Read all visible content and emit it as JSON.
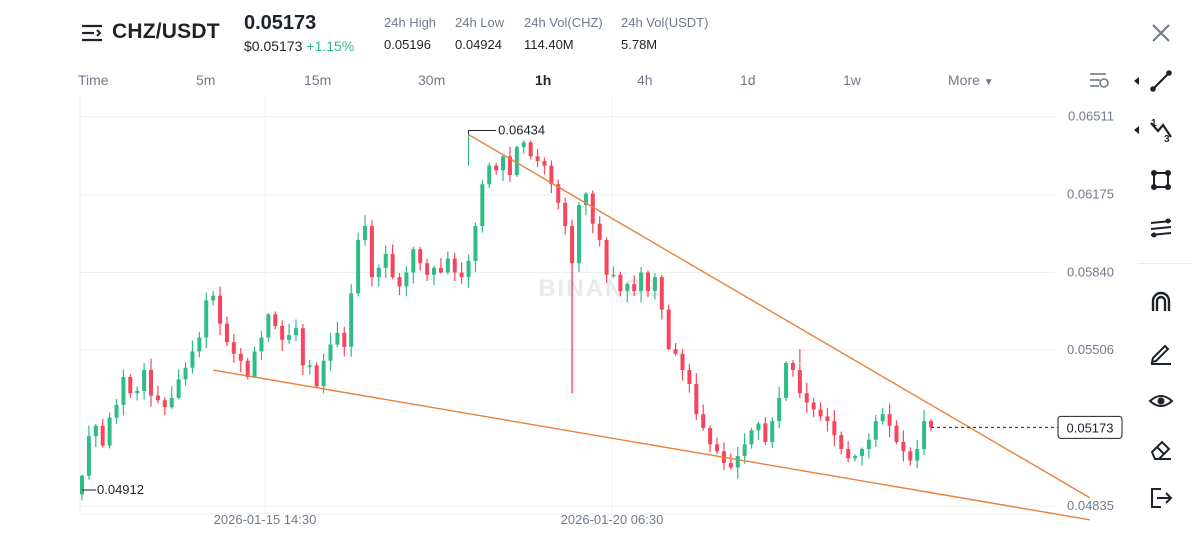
{
  "header": {
    "pair": "CHZ/USDT",
    "last_price": "0.05173",
    "usd_price": "$0.05173",
    "change": "+1.15%",
    "stats": [
      {
        "label": "24h High",
        "value": "0.05196"
      },
      {
        "label": "24h Low",
        "value": "0.04924"
      },
      {
        "label": "24h Vol(CHZ)",
        "value": "114.40M"
      },
      {
        "label": "24h Vol(USDT)",
        "value": "5.78M"
      }
    ]
  },
  "tabs": {
    "time": "Time",
    "intervals": [
      "5m",
      "15m",
      "30m",
      "1h",
      "4h",
      "1d",
      "1w"
    ],
    "active": "1h",
    "more": "More"
  },
  "chart_data": {
    "type": "candlestick",
    "watermark": "BINANCE",
    "y_axis_labels": [
      "0.06511",
      "0.06175",
      "0.05840",
      "0.05506",
      "0.04835"
    ],
    "ylim": [
      0.048,
      0.066
    ],
    "x_axis_labels": [
      "2026-01-15 14:30",
      "2026-01-20 06:30"
    ],
    "high_label": "0.06434",
    "low_label": "0.04912",
    "current_price": "0.05173",
    "colors": {
      "up": "#2ebd85",
      "down": "#f6465d",
      "trendline": "#e8813a",
      "grid": "#eef0f2",
      "text": "#707a8a"
    },
    "closes": [
      0.04965,
      0.05135,
      0.0518,
      0.05095,
      0.05215,
      0.0527,
      0.0539,
      0.0532,
      0.0533,
      0.0542,
      0.0531,
      0.0529,
      0.0526,
      0.053,
      0.0538,
      0.0543,
      0.055,
      0.0556,
      0.0572,
      0.0574,
      0.0562,
      0.0554,
      0.0549,
      0.0546,
      0.0539,
      0.055,
      0.0556,
      0.0566,
      0.0561,
      0.0555,
      0.0557,
      0.056,
      0.0544,
      0.0544,
      0.0535,
      0.0546,
      0.0553,
      0.0558,
      0.0552,
      0.0575,
      0.0598,
      0.0604,
      0.0582,
      0.0586,
      0.0592,
      0.0582,
      0.0578,
      0.0584,
      0.0594,
      0.0588,
      0.0583,
      0.0586,
      0.0584,
      0.059,
      0.0584,
      0.0582,
      0.0589,
      0.0604,
      0.0622,
      0.063,
      0.0628,
      0.0634,
      0.0626,
      0.0638,
      0.064,
      0.0634,
      0.0632,
      0.063,
      0.0622,
      0.0614,
      0.0604,
      0.0588,
      0.0613,
      0.0618,
      0.0605,
      0.0598,
      0.0583,
      0.0583,
      0.0576,
      0.0579,
      0.0576,
      0.0584,
      0.0576,
      0.0582,
      0.0568,
      0.0551,
      0.0549,
      0.0542,
      0.0536,
      0.0523,
      0.0517,
      0.051,
      0.0507,
      0.0502,
      0.05,
      0.0505,
      0.051,
      0.0516,
      0.0519,
      0.0511,
      0.052,
      0.053,
      0.0545,
      0.0542,
      0.0532,
      0.0528,
      0.0525,
      0.0522,
      0.052,
      0.0514,
      0.0508,
      0.0504,
      0.0505,
      0.0508,
      0.0512,
      0.052,
      0.0523,
      0.0518,
      0.0511,
      0.0507,
      0.0503,
      0.0508,
      0.052,
      0.05173
    ],
    "trendlines": [
      {
        "from": {
          "i": 56,
          "p": 0.06434
        },
        "to": {
          "i": 146,
          "p": 0.0487
        }
      },
      {
        "from": {
          "i": 19,
          "p": 0.0542
        },
        "to": {
          "i": 146,
          "p": 0.04775
        }
      }
    ]
  },
  "toolbar": {
    "tools": [
      "line-tool-icon",
      "fib-tool-icon",
      "shape-tool-icon",
      "parallel-channel-icon",
      "magnet-icon",
      "pencil-icon",
      "eye-icon",
      "eraser-icon",
      "exit-icon"
    ]
  }
}
